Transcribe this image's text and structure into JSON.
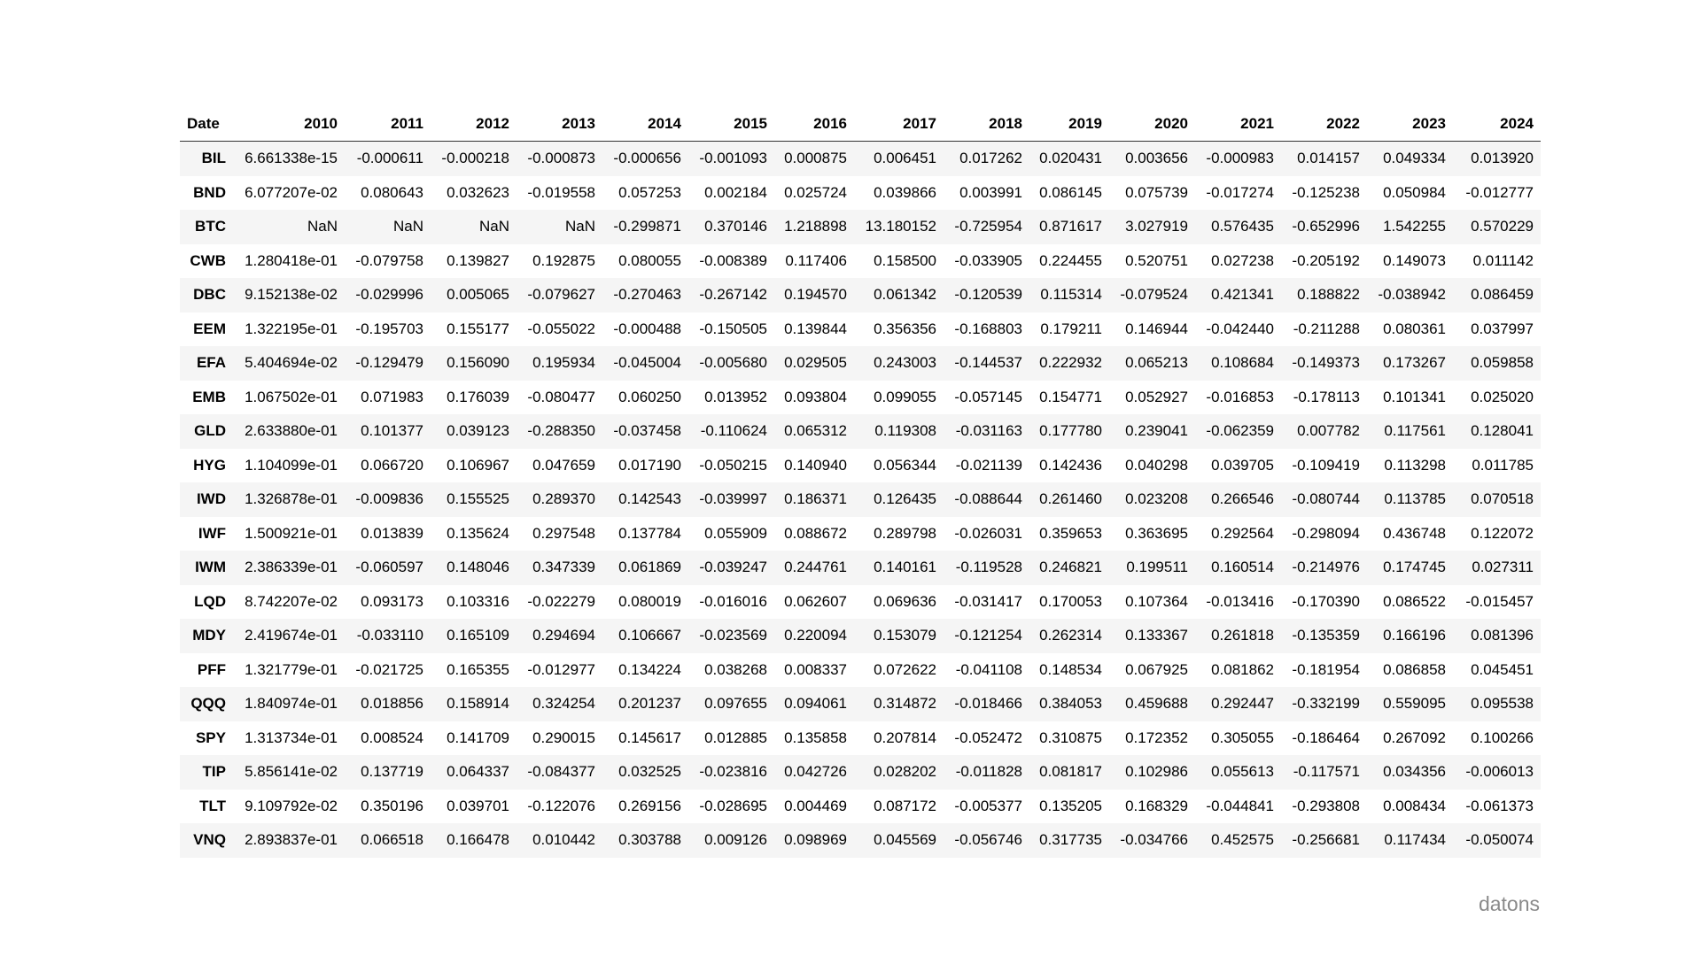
{
  "table": {
    "index_header": "Date",
    "columns": [
      "2010",
      "2011",
      "2012",
      "2013",
      "2014",
      "2015",
      "2016",
      "2017",
      "2018",
      "2019",
      "2020",
      "2021",
      "2022",
      "2023",
      "2024"
    ],
    "rows": [
      {
        "label": "BIL",
        "cells": [
          "6.661338e-15",
          "-0.000611",
          "-0.000218",
          "-0.000873",
          "-0.000656",
          "-0.001093",
          "0.000875",
          "0.006451",
          "0.017262",
          "0.020431",
          "0.003656",
          "-0.000983",
          "0.014157",
          "0.049334",
          "0.013920"
        ]
      },
      {
        "label": "BND",
        "cells": [
          "6.077207e-02",
          "0.080643",
          "0.032623",
          "-0.019558",
          "0.057253",
          "0.002184",
          "0.025724",
          "0.039866",
          "0.003991",
          "0.086145",
          "0.075739",
          "-0.017274",
          "-0.125238",
          "0.050984",
          "-0.012777"
        ]
      },
      {
        "label": "BTC",
        "cells": [
          "NaN",
          "NaN",
          "NaN",
          "NaN",
          "-0.299871",
          "0.370146",
          "1.218898",
          "13.180152",
          "-0.725954",
          "0.871617",
          "3.027919",
          "0.576435",
          "-0.652996",
          "1.542255",
          "0.570229"
        ]
      },
      {
        "label": "CWB",
        "cells": [
          "1.280418e-01",
          "-0.079758",
          "0.139827",
          "0.192875",
          "0.080055",
          "-0.008389",
          "0.117406",
          "0.158500",
          "-0.033905",
          "0.224455",
          "0.520751",
          "0.027238",
          "-0.205192",
          "0.149073",
          "0.011142"
        ]
      },
      {
        "label": "DBC",
        "cells": [
          "9.152138e-02",
          "-0.029996",
          "0.005065",
          "-0.079627",
          "-0.270463",
          "-0.267142",
          "0.194570",
          "0.061342",
          "-0.120539",
          "0.115314",
          "-0.079524",
          "0.421341",
          "0.188822",
          "-0.038942",
          "0.086459"
        ]
      },
      {
        "label": "EEM",
        "cells": [
          "1.322195e-01",
          "-0.195703",
          "0.155177",
          "-0.055022",
          "-0.000488",
          "-0.150505",
          "0.139844",
          "0.356356",
          "-0.168803",
          "0.179211",
          "0.146944",
          "-0.042440",
          "-0.211288",
          "0.080361",
          "0.037997"
        ]
      },
      {
        "label": "EFA",
        "cells": [
          "5.404694e-02",
          "-0.129479",
          "0.156090",
          "0.195934",
          "-0.045004",
          "-0.005680",
          "0.029505",
          "0.243003",
          "-0.144537",
          "0.222932",
          "0.065213",
          "0.108684",
          "-0.149373",
          "0.173267",
          "0.059858"
        ]
      },
      {
        "label": "EMB",
        "cells": [
          "1.067502e-01",
          "0.071983",
          "0.176039",
          "-0.080477",
          "0.060250",
          "0.013952",
          "0.093804",
          "0.099055",
          "-0.057145",
          "0.154771",
          "0.052927",
          "-0.016853",
          "-0.178113",
          "0.101341",
          "0.025020"
        ]
      },
      {
        "label": "GLD",
        "cells": [
          "2.633880e-01",
          "0.101377",
          "0.039123",
          "-0.288350",
          "-0.037458",
          "-0.110624",
          "0.065312",
          "0.119308",
          "-0.031163",
          "0.177780",
          "0.239041",
          "-0.062359",
          "0.007782",
          "0.117561",
          "0.128041"
        ]
      },
      {
        "label": "HYG",
        "cells": [
          "1.104099e-01",
          "0.066720",
          "0.106967",
          "0.047659",
          "0.017190",
          "-0.050215",
          "0.140940",
          "0.056344",
          "-0.021139",
          "0.142436",
          "0.040298",
          "0.039705",
          "-0.109419",
          "0.113298",
          "0.011785"
        ]
      },
      {
        "label": "IWD",
        "cells": [
          "1.326878e-01",
          "-0.009836",
          "0.155525",
          "0.289370",
          "0.142543",
          "-0.039997",
          "0.186371",
          "0.126435",
          "-0.088644",
          "0.261460",
          "0.023208",
          "0.266546",
          "-0.080744",
          "0.113785",
          "0.070518"
        ]
      },
      {
        "label": "IWF",
        "cells": [
          "1.500921e-01",
          "0.013839",
          "0.135624",
          "0.297548",
          "0.137784",
          "0.055909",
          "0.088672",
          "0.289798",
          "-0.026031",
          "0.359653",
          "0.363695",
          "0.292564",
          "-0.298094",
          "0.436748",
          "0.122072"
        ]
      },
      {
        "label": "IWM",
        "cells": [
          "2.386339e-01",
          "-0.060597",
          "0.148046",
          "0.347339",
          "0.061869",
          "-0.039247",
          "0.244761",
          "0.140161",
          "-0.119528",
          "0.246821",
          "0.199511",
          "0.160514",
          "-0.214976",
          "0.174745",
          "0.027311"
        ]
      },
      {
        "label": "LQD",
        "cells": [
          "8.742207e-02",
          "0.093173",
          "0.103316",
          "-0.022279",
          "0.080019",
          "-0.016016",
          "0.062607",
          "0.069636",
          "-0.031417",
          "0.170053",
          "0.107364",
          "-0.013416",
          "-0.170390",
          "0.086522",
          "-0.015457"
        ]
      },
      {
        "label": "MDY",
        "cells": [
          "2.419674e-01",
          "-0.033110",
          "0.165109",
          "0.294694",
          "0.106667",
          "-0.023569",
          "0.220094",
          "0.153079",
          "-0.121254",
          "0.262314",
          "0.133367",
          "0.261818",
          "-0.135359",
          "0.166196",
          "0.081396"
        ]
      },
      {
        "label": "PFF",
        "cells": [
          "1.321779e-01",
          "-0.021725",
          "0.165355",
          "-0.012977",
          "0.134224",
          "0.038268",
          "0.008337",
          "0.072622",
          "-0.041108",
          "0.148534",
          "0.067925",
          "0.081862",
          "-0.181954",
          "0.086858",
          "0.045451"
        ]
      },
      {
        "label": "QQQ",
        "cells": [
          "1.840974e-01",
          "0.018856",
          "0.158914",
          "0.324254",
          "0.201237",
          "0.097655",
          "0.094061",
          "0.314872",
          "-0.018466",
          "0.384053",
          "0.459688",
          "0.292447",
          "-0.332199",
          "0.559095",
          "0.095538"
        ]
      },
      {
        "label": "SPY",
        "cells": [
          "1.313734e-01",
          "0.008524",
          "0.141709",
          "0.290015",
          "0.145617",
          "0.012885",
          "0.135858",
          "0.207814",
          "-0.052472",
          "0.310875",
          "0.172352",
          "0.305055",
          "-0.186464",
          "0.267092",
          "0.100266"
        ]
      },
      {
        "label": "TIP",
        "cells": [
          "5.856141e-02",
          "0.137719",
          "0.064337",
          "-0.084377",
          "0.032525",
          "-0.023816",
          "0.042726",
          "0.028202",
          "-0.011828",
          "0.081817",
          "0.102986",
          "0.055613",
          "-0.117571",
          "0.034356",
          "-0.006013"
        ]
      },
      {
        "label": "TLT",
        "cells": [
          "9.109792e-02",
          "0.350196",
          "0.039701",
          "-0.122076",
          "0.269156",
          "-0.028695",
          "0.004469",
          "0.087172",
          "-0.005377",
          "0.135205",
          "0.168329",
          "-0.044841",
          "-0.293808",
          "0.008434",
          "-0.061373"
        ]
      },
      {
        "label": "VNQ",
        "cells": [
          "2.893837e-01",
          "0.066518",
          "0.166478",
          "0.010442",
          "0.303788",
          "0.009126",
          "0.098969",
          "0.045569",
          "-0.056746",
          "0.317735",
          "-0.034766",
          "0.452575",
          "-0.256681",
          "0.117434",
          "-0.050074"
        ]
      }
    ]
  },
  "watermark": "datons"
}
